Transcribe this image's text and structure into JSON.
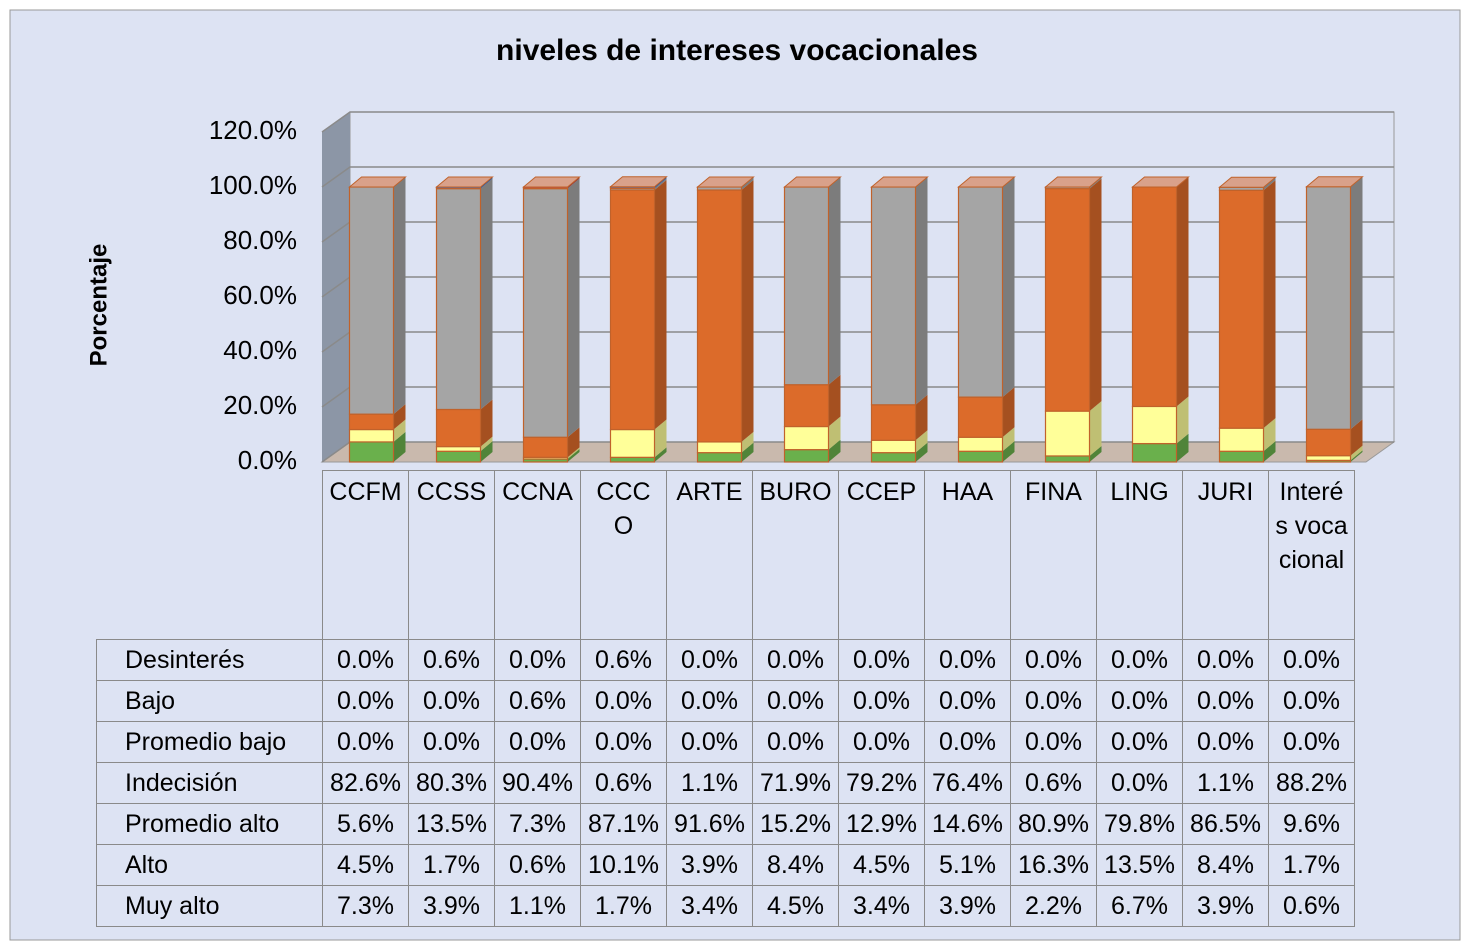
{
  "chart_data": {
    "type": "stacked_bar_3d",
    "title": "niveles de intereses vocacionales",
    "y_label": "Porcentaje",
    "grid": true,
    "ylim": [
      0,
      120
    ],
    "yticks": [
      {
        "value": 0,
        "label": "0.0%"
      },
      {
        "value": 20,
        "label": "20.0%"
      },
      {
        "value": 40,
        "label": "40.0%"
      },
      {
        "value": 60,
        "label": "60.0%"
      },
      {
        "value": 80,
        "label": "80.0%"
      },
      {
        "value": 100,
        "label": "100.0%"
      },
      {
        "value": 120,
        "label": "120.0%"
      }
    ],
    "categories": [
      "CCFM",
      "CCSS",
      "CCNA",
      "CCCO",
      "ARTE",
      "BURO",
      "CCEP",
      "HAA",
      "FINA",
      "LING",
      "JURI",
      "Interés vocacional"
    ],
    "series": [
      {
        "name": "Desinterés",
        "color": "#4472c4",
        "values": [
          0.0,
          0.6,
          0.0,
          0.6,
          0.0,
          0.0,
          0.0,
          0.0,
          0.0,
          0.0,
          0.0,
          0.0
        ],
        "value_labels": [
          "0.0%",
          "0.6%",
          "0.0%",
          "0.6%",
          "0.0%",
          "0.0%",
          "0.0%",
          "0.0%",
          "0.0%",
          "0.0%",
          "0.0%",
          "0.0%"
        ]
      },
      {
        "name": "Bajo",
        "color": "#c0504d",
        "values": [
          0.0,
          0.0,
          0.6,
          0.0,
          0.0,
          0.0,
          0.0,
          0.0,
          0.0,
          0.0,
          0.0,
          0.0
        ],
        "value_labels": [
          "0.0%",
          "0.0%",
          "0.6%",
          "0.0%",
          "0.0%",
          "0.0%",
          "0.0%",
          "0.0%",
          "0.0%",
          "0.0%",
          "0.0%",
          "0.0%"
        ]
      },
      {
        "name": "Promedio bajo",
        "color": "#8064a2",
        "values": [
          0.0,
          0.0,
          0.0,
          0.0,
          0.0,
          0.0,
          0.0,
          0.0,
          0.0,
          0.0,
          0.0,
          0.0
        ],
        "value_labels": [
          "0.0%",
          "0.0%",
          "0.0%",
          "0.0%",
          "0.0%",
          "0.0%",
          "0.0%",
          "0.0%",
          "0.0%",
          "0.0%",
          "0.0%",
          "0.0%"
        ]
      },
      {
        "name": "Indecisión",
        "color": "#a5a5a5",
        "values": [
          82.6,
          80.3,
          90.4,
          0.6,
          1.1,
          71.9,
          79.2,
          76.4,
          0.6,
          0.0,
          1.1,
          88.2
        ],
        "value_labels": [
          "82.6%",
          "80.3%",
          "90.4%",
          "0.6%",
          "1.1%",
          "71.9%",
          "79.2%",
          "76.4%",
          "0.6%",
          "0.0%",
          "1.1%",
          "88.2%"
        ]
      },
      {
        "name": "Promedio alto",
        "color": "#dc6b2a",
        "values": [
          5.6,
          13.5,
          7.3,
          87.1,
          91.6,
          15.2,
          12.9,
          14.6,
          80.9,
          79.8,
          86.5,
          9.6
        ],
        "value_labels": [
          "5.6%",
          "13.5%",
          "7.3%",
          "87.1%",
          "91.6%",
          "15.2%",
          "12.9%",
          "14.6%",
          "80.9%",
          "79.8%",
          "86.5%",
          "9.6%"
        ]
      },
      {
        "name": "Alto",
        "color": "#ffff99",
        "values": [
          4.5,
          1.7,
          0.6,
          10.1,
          3.9,
          8.4,
          4.5,
          5.1,
          16.3,
          13.5,
          8.4,
          1.7
        ],
        "value_labels": [
          "4.5%",
          "1.7%",
          "0.6%",
          "10.1%",
          "3.9%",
          "8.4%",
          "4.5%",
          "5.1%",
          "16.3%",
          "13.5%",
          "8.4%",
          "1.7%"
        ]
      },
      {
        "name": "Muy alto",
        "color": "#6ab04c",
        "values": [
          7.3,
          3.9,
          1.1,
          1.7,
          3.4,
          4.5,
          3.4,
          3.9,
          2.2,
          6.7,
          3.9,
          0.6
        ],
        "value_labels": [
          "7.3%",
          "3.9%",
          "1.1%",
          "1.7%",
          "3.4%",
          "4.5%",
          "3.4%",
          "3.9%",
          "2.2%",
          "6.7%",
          "3.9%",
          "0.6%"
        ]
      }
    ]
  }
}
